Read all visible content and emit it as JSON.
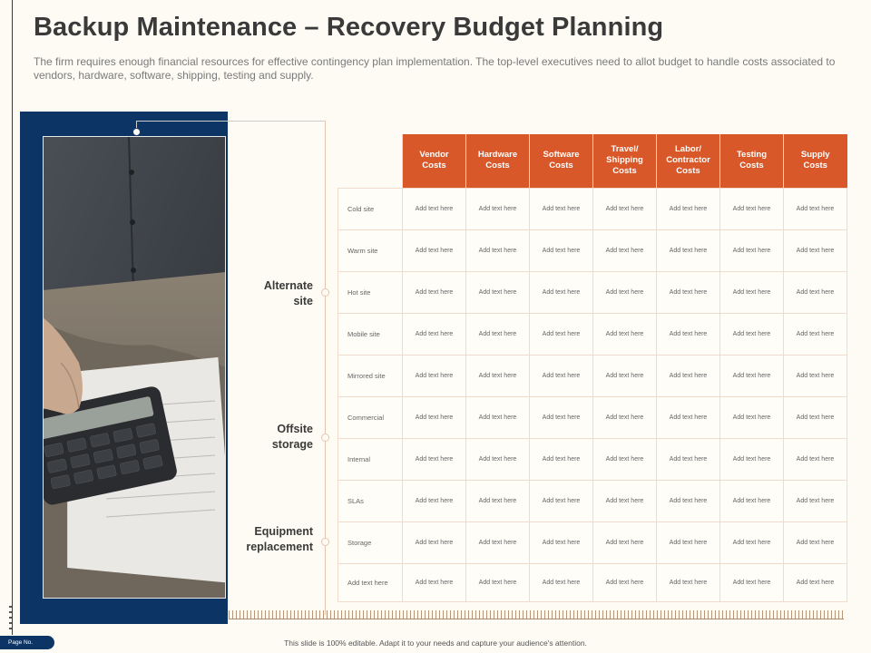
{
  "title": "Backup Maintenance – Recovery Budget Planning",
  "subtitle": "The firm requires enough financial resources for effective contingency plan implementation. The top-level executives need to allot budget to handle costs associated to vendors, hardware, software, shipping, testing and supply.",
  "groups": [
    {
      "label_line1": "Alternate",
      "label_line2": "site"
    },
    {
      "label_line1": "Offsite",
      "label_line2": "storage"
    },
    {
      "label_line1": "Equipment",
      "label_line2": "replacement"
    }
  ],
  "table": {
    "headers": [
      [
        "Vendor",
        "Costs"
      ],
      [
        "Hardware",
        "Costs"
      ],
      [
        "Software",
        "Costs"
      ],
      [
        "Travel/",
        "Shipping",
        "Costs"
      ],
      [
        "Labor/",
        "Contractor",
        "Costs"
      ],
      [
        "Testing",
        "Costs"
      ],
      [
        "Supply",
        "Costs"
      ]
    ],
    "rows": [
      {
        "label": "Cold site",
        "cells": [
          "Add text here",
          "Add text here",
          "Add text here",
          "Add text here",
          "Add text here",
          "Add text here",
          "Add text here"
        ]
      },
      {
        "label": "Warm  site",
        "cells": [
          "Add text here",
          "Add text here",
          "Add text here",
          "Add text here",
          "Add text here",
          "Add text here",
          "Add text here"
        ]
      },
      {
        "label": "Hot site",
        "cells": [
          "Add text here",
          "Add text here",
          "Add text here",
          "Add text here",
          "Add text here",
          "Add text here",
          "Add text here"
        ]
      },
      {
        "label": "Mobile site",
        "cells": [
          "Add text here",
          "Add text here",
          "Add text here",
          "Add text here",
          "Add text here",
          "Add text here",
          "Add text here"
        ]
      },
      {
        "label": "Mirrored  site",
        "cells": [
          "Add text here",
          "Add text here",
          "Add text here",
          "Add text here",
          "Add text here",
          "Add text here",
          "Add text here"
        ]
      },
      {
        "label": "Commercial",
        "cells": [
          "Add text here",
          "Add text here",
          "Add text here",
          "Add text here",
          "Add text here",
          "Add text here",
          "Add text here"
        ]
      },
      {
        "label": "Internal",
        "cells": [
          "Add text here",
          "Add text here",
          "Add text here",
          "Add text here",
          "Add text here",
          "Add text here",
          "Add text here"
        ]
      },
      {
        "label": "SLAs",
        "cells": [
          "Add text here",
          "Add text here",
          "Add text here",
          "Add text here",
          "Add text here",
          "Add text here",
          "Add text here"
        ]
      },
      {
        "label": "Storage",
        "cells": [
          "Add text here",
          "Add text here",
          "Add text here",
          "Add text here",
          "Add text here",
          "Add text here",
          "Add text here"
        ]
      },
      {
        "label": "Add text here",
        "cells": [
          "Add text here",
          "Add text here",
          "Add text here",
          "Add text here",
          "Add text here",
          "Add text here",
          "Add text here"
        ]
      }
    ]
  },
  "footer": {
    "page_label": "Page No.",
    "note": "This slide is 100% editable. Adapt it to your needs and capture your audience's attention."
  },
  "colors": {
    "accent": "#d9582a",
    "navy": "#0c3566",
    "background": "#fdfbf3"
  },
  "photo": {
    "icon": "calculator-photo"
  }
}
